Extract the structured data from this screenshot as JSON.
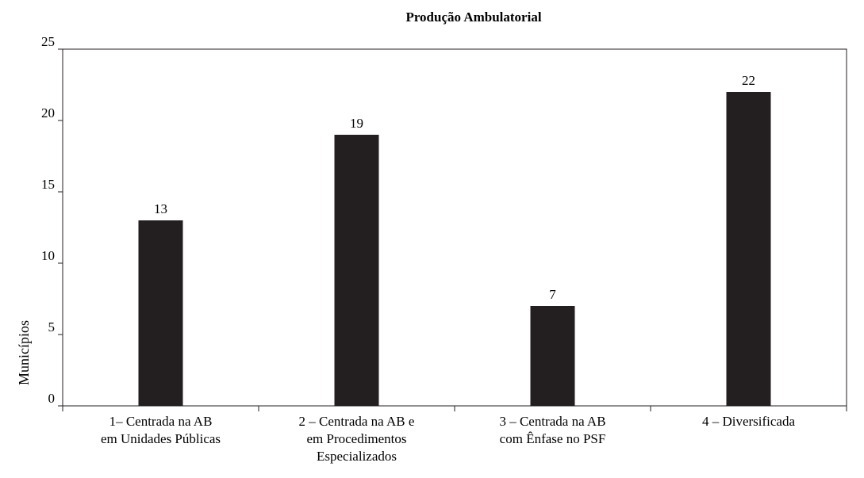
{
  "chart_data": {
    "type": "bar",
    "title": "Produção Ambulatorial",
    "xlabel": "",
    "ylabel": "Municípios",
    "categories": [
      [
        "1– Centrada na AB",
        "em Unidades Públicas"
      ],
      [
        "2 – Centrada na AB e",
        "em Procedimentos",
        "Especializados"
      ],
      [
        "3 – Centrada na AB",
        "com Ênfase no PSF"
      ],
      [
        "4 – Diversificada"
      ]
    ],
    "values": [
      13,
      19,
      7,
      22
    ],
    "data_labels": [
      "13",
      "19",
      "7",
      "22"
    ],
    "ylim": [
      0,
      25
    ],
    "yticks": [
      "0",
      "5",
      "10",
      "15",
      "20",
      "25"
    ],
    "grid": false,
    "legend": "none",
    "bar_color": "#231f20"
  }
}
